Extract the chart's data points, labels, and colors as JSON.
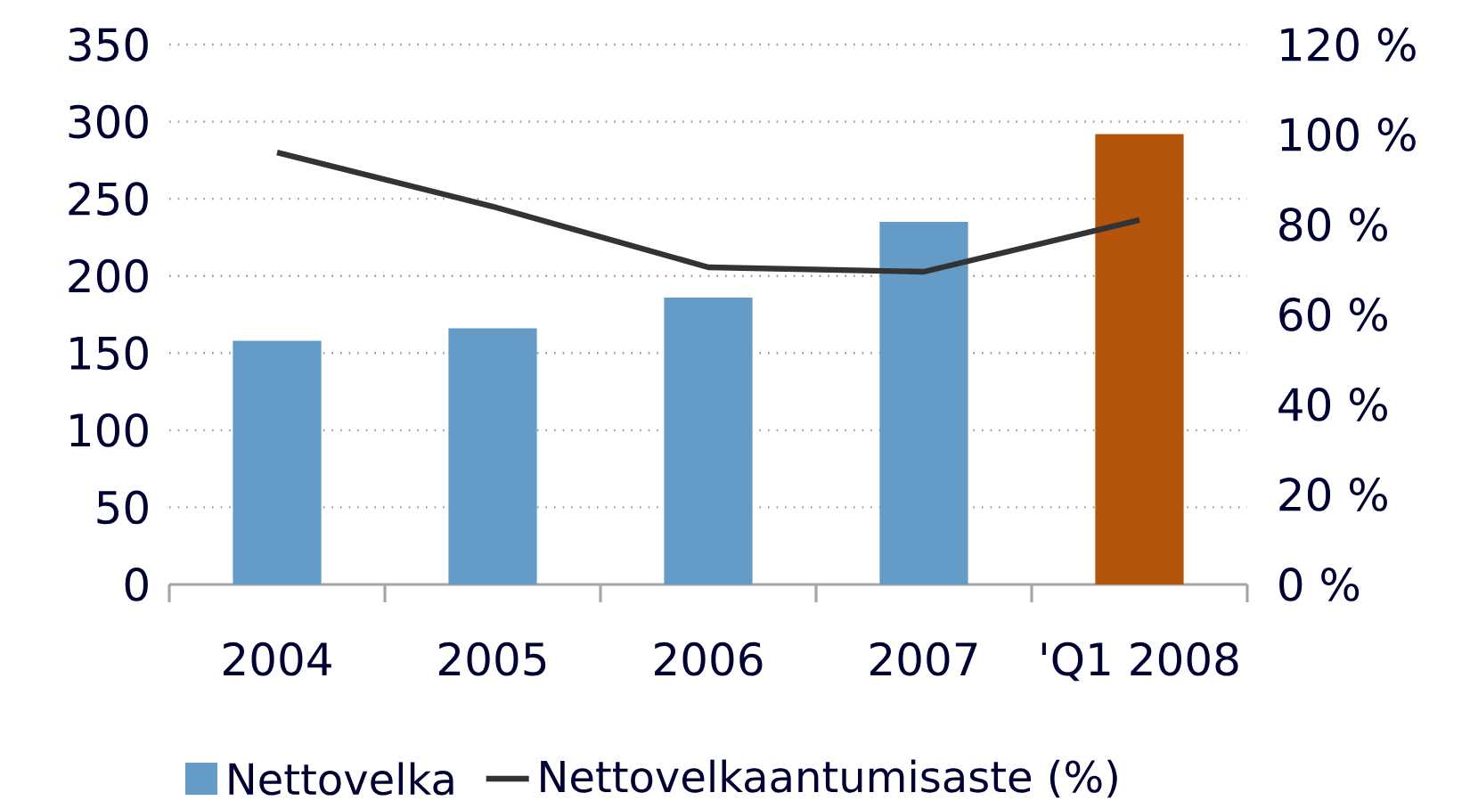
{
  "chart_data": {
    "type": "bar",
    "categories": [
      "2004",
      "2005",
      "2006",
      "2007",
      "'Q1 2008"
    ],
    "series": [
      {
        "name": "Nettovelka",
        "color": "#659bc7",
        "colors": [
          "#659bc7",
          "#659bc7",
          "#659bc7",
          "#659bc7",
          "#b5540b"
        ],
        "values": [
          158,
          166,
          186,
          235,
          292
        ]
      },
      {
        "name": "Nettovelkaantumisaste (%)",
        "type": "line",
        "axis": "y2",
        "color": "#333333",
        "values": [
          96,
          84,
          70.5,
          69.5,
          81
        ]
      }
    ],
    "ylim": [
      0,
      350
    ],
    "yticks": [
      0,
      50,
      100,
      150,
      200,
      250,
      300,
      350
    ],
    "y2lim": [
      0,
      120
    ],
    "y2ticks": [
      {
        "value": 0,
        "label": "0 %"
      },
      {
        "value": 20,
        "label": "20 %"
      },
      {
        "value": 40,
        "label": "40 %"
      },
      {
        "value": 60,
        "label": "60 %"
      },
      {
        "value": 80,
        "label": "80 %"
      },
      {
        "value": 100,
        "label": "100 %"
      },
      {
        "value": 120,
        "label": "120 %"
      }
    ],
    "grid": "y",
    "legend": "bottom",
    "marker": "none",
    "line_style": "solid"
  }
}
